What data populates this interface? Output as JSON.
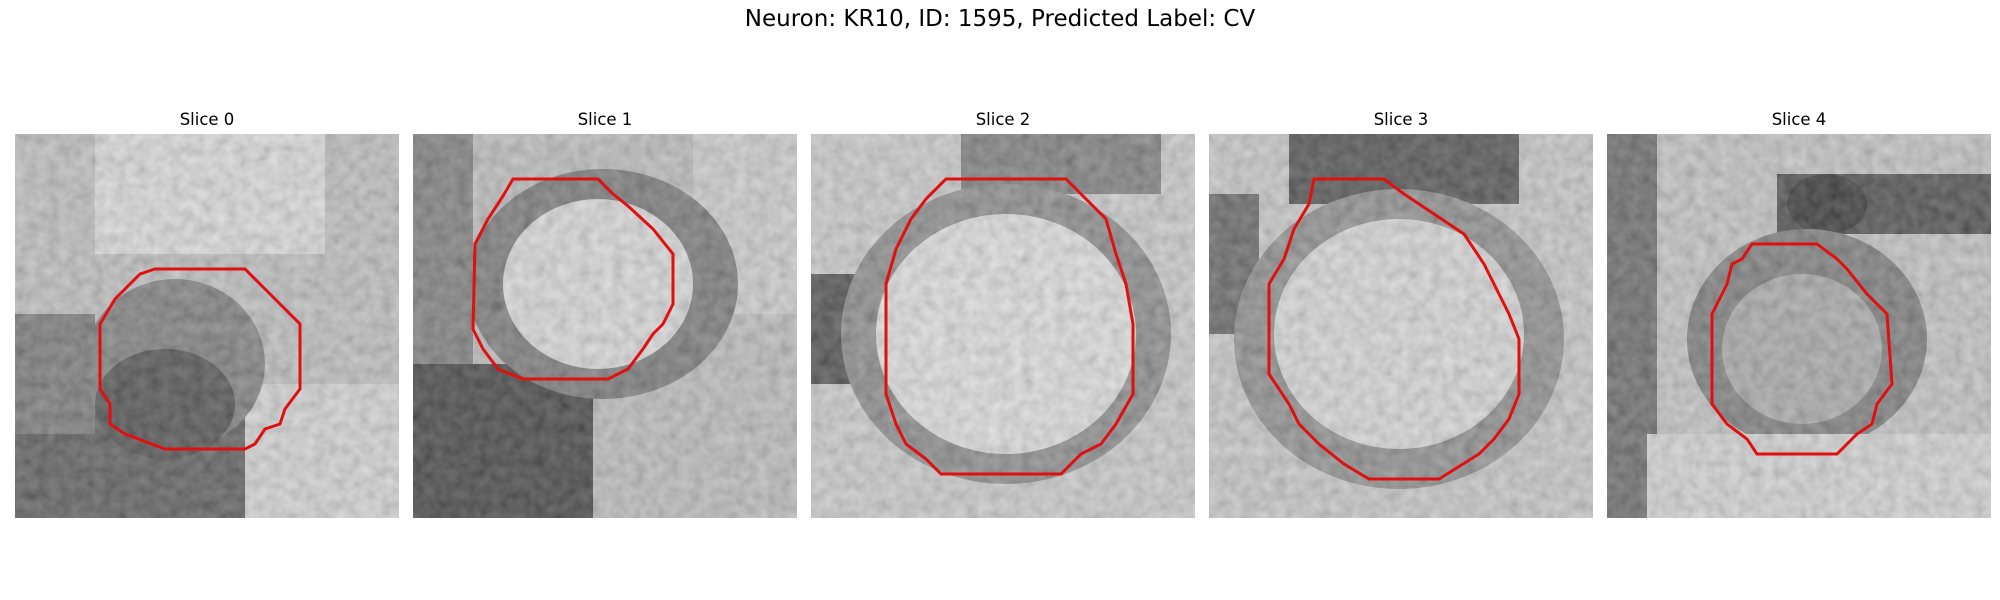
{
  "figure": {
    "title": "Neuron: KR10, ID: 1595, Predicted Label: CV"
  },
  "panels": [
    {
      "title": "Slice 0"
    },
    {
      "title": "Slice 1"
    },
    {
      "title": "Slice 2"
    },
    {
      "title": "Slice 3"
    },
    {
      "title": "Slice 4"
    }
  ],
  "colors": {
    "contour": "#e01010"
  }
}
